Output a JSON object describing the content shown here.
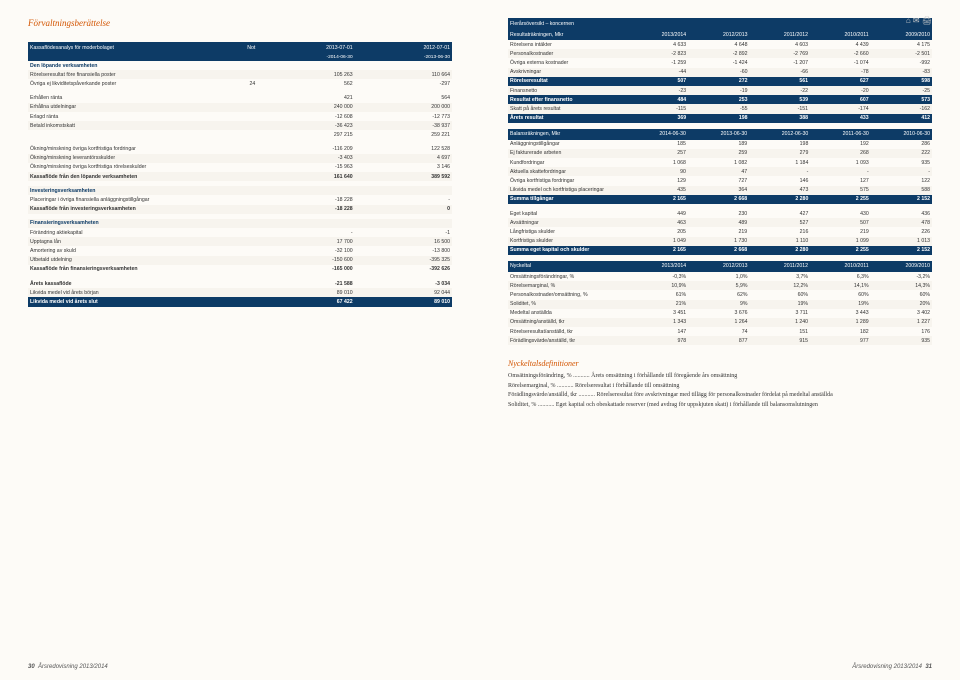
{
  "header": "Förvaltningsberättelse",
  "left": {
    "title": "Kassaflödesanalys för moderbolaget",
    "note": "Not",
    "col1": "2013-07-01",
    "col2": "2012-07-01",
    "sub1": "-2014-06-30",
    "sub2": "-2013-06-30",
    "rows": [
      {
        "l": "Den löpande verksamheten",
        "s": true
      },
      {
        "l": "Rörelseresultat före finansiella poster",
        "a": "",
        "b": "105 263",
        "c": "110 664"
      },
      {
        "l": "Övriga ej likviditetspåverkande poster",
        "a": "24",
        "b": "562",
        "c": "-297"
      },
      {
        "sp": true
      },
      {
        "l": "Erhållen ränta",
        "a": "",
        "b": "421",
        "c": "564"
      },
      {
        "l": "Erhållna utdelningar",
        "a": "",
        "b": "240 000",
        "c": "200 000"
      },
      {
        "l": "Erlagd ränta",
        "a": "",
        "b": "-12 608",
        "c": "-12 773"
      },
      {
        "l": "Betald inkomstskatt",
        "a": "",
        "b": "-36 423",
        "c": "-38 937"
      },
      {
        "l": "",
        "a": "",
        "b": "297 215",
        "c": "259 221"
      },
      {
        "sp": true
      },
      {
        "l": "Ökning/minskning övriga kortfristiga fordringar",
        "a": "",
        "b": "-116 209",
        "c": "122 528"
      },
      {
        "l": "Ökning/minskning leverantörsskulder",
        "a": "",
        "b": "-3 403",
        "c": "4 697"
      },
      {
        "l": "Ökning/minskning övriga kortfristiga rörelseskulder",
        "a": "",
        "b": "-15 963",
        "c": "3 146"
      },
      {
        "l": "Kassaflöde från den löpande verksamheten",
        "a": "",
        "b": "161 640",
        "c": "389 592",
        "bold": true
      },
      {
        "sp": true
      },
      {
        "l": "Investeringsverksamheten",
        "s": true
      },
      {
        "l": "Placeringar i övriga finansiella anläggningstillgångar",
        "a": "",
        "b": "-18 228",
        "c": "-"
      },
      {
        "l": "Kassaflöde från investeringsverksamheten",
        "a": "",
        "b": "-18 228",
        "c": "0",
        "bold": true
      },
      {
        "sp": true
      },
      {
        "l": "Finansieringsverksamheten",
        "s": true
      },
      {
        "l": "Förändring aktiekapital",
        "a": "",
        "b": "-",
        "c": "-1"
      },
      {
        "l": "Upptagna lån",
        "a": "",
        "b": "17 700",
        "c": "16 500"
      },
      {
        "l": "Amortering av skuld",
        "a": "",
        "b": "-32 100",
        "c": "-13 800"
      },
      {
        "l": "Utbetald utdelning",
        "a": "",
        "b": "-150 600",
        "c": "-395 325"
      },
      {
        "l": "Kassaflöde från finansieringsverksamheten",
        "a": "",
        "b": "-165 000",
        "c": "-392 626",
        "bold": true
      },
      {
        "sp": true
      },
      {
        "l": "Årets kassaflöde",
        "a": "",
        "b": "-21 588",
        "c": "-3 034",
        "bold": true
      },
      {
        "l": "Likvida medel vid årets början",
        "a": "",
        "b": "89 010",
        "c": "92 044"
      },
      {
        "l": "Likvida medel vid årets slut",
        "a": "",
        "b": "67 422",
        "c": "89 010",
        "hl": true
      }
    ]
  },
  "right": {
    "t1_title": "Flerårsöversikt – koncernen",
    "t1_sub": "Resultaträkningen, Mkr",
    "years": [
      "2013/2014",
      "2012/2013",
      "2011/2012",
      "2010/2011",
      "2009/2010"
    ],
    "t1_rows": [
      {
        "l": "Rörelsens intäkter",
        "v": [
          "4 633",
          "4 648",
          "4 603",
          "4 439",
          "4 175"
        ]
      },
      {
        "l": "Personalkostnader",
        "v": [
          "-2 823",
          "-2 892",
          "-2 769",
          "-2 660",
          "-2 501"
        ]
      },
      {
        "l": "Övriga externa kostnader",
        "v": [
          "-1 259",
          "-1 424",
          "-1 207",
          "-1 074",
          "-992"
        ]
      },
      {
        "l": "Avskrivningar",
        "v": [
          "-44",
          "-60",
          "-66",
          "-78",
          "-83"
        ]
      },
      {
        "l": "Rörelseresultat",
        "v": [
          "507",
          "272",
          "561",
          "627",
          "598"
        ],
        "hl": true
      },
      {
        "l": "Finansnetto",
        "v": [
          "-23",
          "-19",
          "-22",
          "-20",
          "-25"
        ]
      },
      {
        "l": "Resultat efter finansnetto",
        "v": [
          "484",
          "253",
          "539",
          "607",
          "573"
        ],
        "hl": true
      },
      {
        "l": "Skatt på årets resultat",
        "v": [
          "-115",
          "-55",
          "-151",
          "-174",
          "-162"
        ]
      },
      {
        "l": "Årets resultat",
        "v": [
          "369",
          "198",
          "388",
          "433",
          "412"
        ],
        "hl": true
      }
    ],
    "t2_sub": "Balansräkningen, Mkr",
    "dates": [
      "2014-06-30",
      "2013-06-30",
      "2012-06-30",
      "2011-06-30",
      "2010-06-30"
    ],
    "t2_rows": [
      {
        "l": "Anläggningstillgångar",
        "v": [
          "185",
          "189",
          "198",
          "192",
          "286"
        ]
      },
      {
        "l": "Ej fakturerade arbeten",
        "v": [
          "257",
          "259",
          "279",
          "268",
          "222"
        ]
      },
      {
        "l": "Kundfordringar",
        "v": [
          "1 068",
          "1 082",
          "1 184",
          "1 093",
          "935"
        ]
      },
      {
        "l": "Aktuella skattefordringar",
        "v": [
          "90",
          "47",
          "-",
          "-",
          "-"
        ]
      },
      {
        "l": "Övriga kortfristiga fordringar",
        "v": [
          "129",
          "727",
          "146",
          "127",
          "122"
        ]
      },
      {
        "l": "Likvida medel och kortfristiga placeringar",
        "v": [
          "435",
          "364",
          "473",
          "575",
          "588"
        ]
      },
      {
        "l": "Summa tillgångar",
        "v": [
          "2 165",
          "2 668",
          "2 280",
          "2 255",
          "2 152"
        ],
        "hl": true
      },
      {
        "sp": true
      },
      {
        "l": "Eget kapital",
        "v": [
          "449",
          "230",
          "427",
          "430",
          "436"
        ]
      },
      {
        "l": "Avsättningar",
        "v": [
          "463",
          "489",
          "527",
          "507",
          "478"
        ]
      },
      {
        "l": "Långfristiga skulder",
        "v": [
          "205",
          "219",
          "216",
          "219",
          "226"
        ]
      },
      {
        "l": "Kortfristiga skulder",
        "v": [
          "1 049",
          "1 730",
          "1 110",
          "1 099",
          "1 013"
        ]
      },
      {
        "l": "Summa eget kapital och skulder",
        "v": [
          "2 165",
          "2 668",
          "2 280",
          "2 255",
          "2 152"
        ],
        "hl": true
      }
    ],
    "t3_sub": "Nyckeltal",
    "t3_rows": [
      {
        "l": "Omsättningsförändringar, %",
        "v": [
          "-0,3%",
          "1,0%",
          "3,7%",
          "6,3%",
          "-3,2%"
        ]
      },
      {
        "l": "Rörelsemarginal, %",
        "v": [
          "10,9%",
          "5,9%",
          "12,2%",
          "14,1%",
          "14,3%"
        ]
      },
      {
        "l": "Personalkostnader/omsättning, %",
        "v": [
          "61%",
          "62%",
          "60%",
          "60%",
          "60%"
        ]
      },
      {
        "l": "Soliditet, %",
        "v": [
          "21%",
          "9%",
          "19%",
          "19%",
          "20%"
        ]
      },
      {
        "l": "Medeltal anställda",
        "v": [
          "3 451",
          "3 676",
          "3 711",
          "3 443",
          "3 402"
        ]
      },
      {
        "l": "Omsättning/anställd, tkr",
        "v": [
          "1 343",
          "1 264",
          "1 240",
          "1 289",
          "1 227"
        ]
      },
      {
        "l": "Rörelseresultat/anställd, tkr",
        "v": [
          "147",
          "74",
          "151",
          "182",
          "176"
        ]
      },
      {
        "l": "Förädlingsvärde/anställd, tkr",
        "v": [
          "978",
          "877",
          "915",
          "977",
          "935"
        ]
      }
    ]
  },
  "defs": {
    "title": "Nyckeltalsdefinitioner",
    "items": [
      {
        "t": "Omsättningsförändring, %",
        "d": "Årets omsättning i förhållande till föregående års omsättning"
      },
      {
        "t": "Rörelsemarginal, %",
        "d": "Rörelseresultat i förhållande till omsättning"
      },
      {
        "t": "Förädlingsvärde/anställd, tkr",
        "d": "Rörelseresultat före avskrivningar med tillägg för personalkostnader fördelat på medeltal anställda"
      },
      {
        "t": "Soliditet, %",
        "d": "Eget kapital och obeskattade reserver (med avdrag för uppskjuten skatt) i förhållande till balansomslutningen"
      }
    ]
  },
  "footer": {
    "left_num": "30",
    "right_num": "31",
    "text": "Årsredovisning 2013/2014"
  }
}
